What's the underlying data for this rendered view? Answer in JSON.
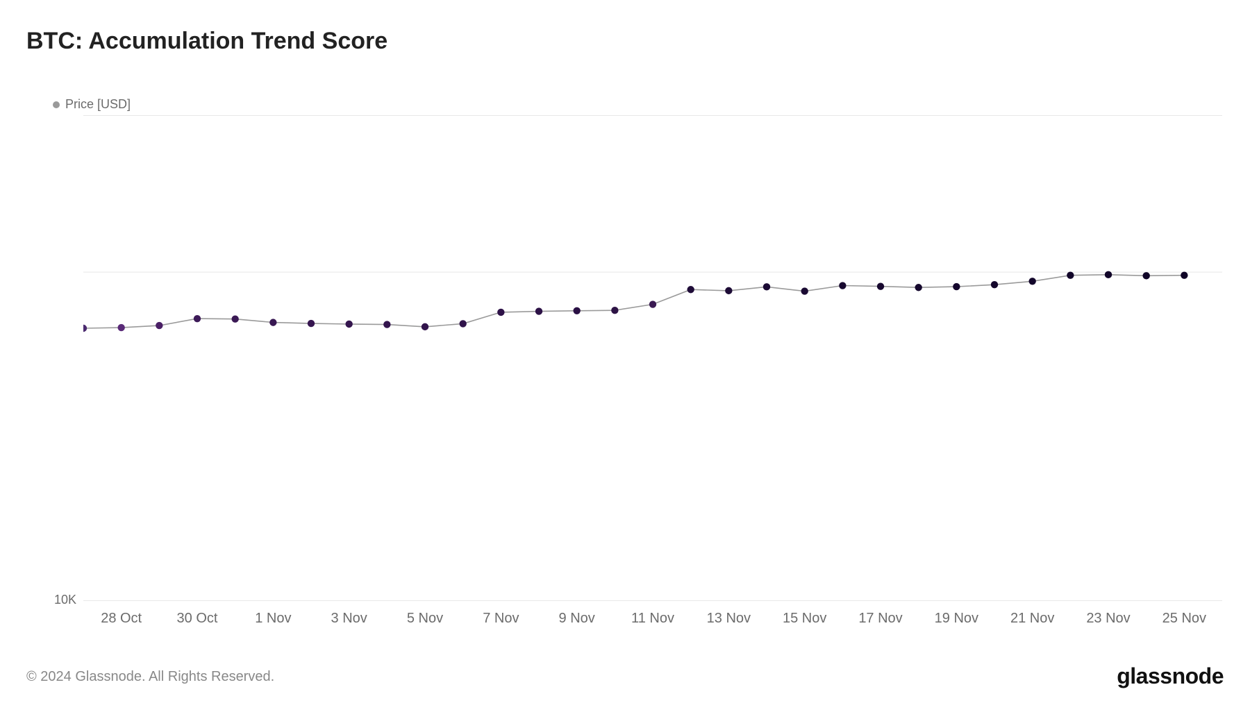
{
  "title": "BTC: Accumulation Trend Score",
  "legend": {
    "label": "Price [USD]",
    "dot_color": "#9a9a9a"
  },
  "footer": {
    "copyright": "© 2024 Glassnode. All Rights Reserved.",
    "brand": "glassnode"
  },
  "chart": {
    "type": "line-scatter",
    "background_color": "#ffffff",
    "grid_color": "#e8e8e8",
    "axis_color": "#d0d0d0",
    "line_color": "#9a9a9a",
    "line_width": 1.6,
    "marker_radius": 5.2,
    "y_axis": {
      "min_label": "10K",
      "min_value": 10000,
      "max_value": 300000,
      "gridline_value": 100000
    },
    "x_ticks": [
      "28 Oct",
      "30 Oct",
      "1 Nov",
      "3 Nov",
      "5 Nov",
      "7 Nov",
      "9 Nov",
      "11 Nov",
      "13 Nov",
      "15 Nov",
      "17 Nov",
      "19 Nov",
      "21 Nov",
      "23 Nov",
      "25 Nov"
    ],
    "x_tick_indices": [
      1,
      3,
      5,
      7,
      9,
      11,
      13,
      15,
      17,
      19,
      21,
      23,
      25,
      27,
      29
    ],
    "x_index_range": [
      0,
      30
    ],
    "points": [
      {
        "i": 0,
        "v": 67500,
        "c": "#4b2a6f"
      },
      {
        "i": 1,
        "v": 67800,
        "c": "#5a2a78"
      },
      {
        "i": 2,
        "v": 68800,
        "c": "#4a1f66"
      },
      {
        "i": 3,
        "v": 72200,
        "c": "#3d1a58"
      },
      {
        "i": 4,
        "v": 72000,
        "c": "#3a1854"
      },
      {
        "i": 5,
        "v": 70300,
        "c": "#381752"
      },
      {
        "i": 6,
        "v": 69800,
        "c": "#361650"
      },
      {
        "i": 7,
        "v": 69500,
        "c": "#34154e"
      },
      {
        "i": 8,
        "v": 69300,
        "c": "#33144d"
      },
      {
        "i": 9,
        "v": 68200,
        "c": "#32144c"
      },
      {
        "i": 10,
        "v": 69700,
        "c": "#30134a"
      },
      {
        "i": 11,
        "v": 75500,
        "c": "#2e1248"
      },
      {
        "i": 12,
        "v": 76000,
        "c": "#2c1146"
      },
      {
        "i": 13,
        "v": 76300,
        "c": "#2a1044"
      },
      {
        "i": 14,
        "v": 76500,
        "c": "#2d1345"
      },
      {
        "i": 15,
        "v": 79800,
        "c": "#3a1a52"
      },
      {
        "i": 16,
        "v": 88500,
        "c": "#1f0c38"
      },
      {
        "i": 17,
        "v": 87800,
        "c": "#1d0b36"
      },
      {
        "i": 18,
        "v": 90200,
        "c": "#1b0a34"
      },
      {
        "i": 19,
        "v": 87500,
        "c": "#1a0a32"
      },
      {
        "i": 20,
        "v": 91000,
        "c": "#180930"
      },
      {
        "i": 21,
        "v": 90500,
        "c": "#17082f"
      },
      {
        "i": 22,
        "v": 89800,
        "c": "#16082e"
      },
      {
        "i": 23,
        "v": 90300,
        "c": "#15072d"
      },
      {
        "i": 24,
        "v": 91600,
        "c": "#14072c"
      },
      {
        "i": 25,
        "v": 93800,
        "c": "#13062b"
      },
      {
        "i": 26,
        "v": 97800,
        "c": "#12062a"
      },
      {
        "i": 27,
        "v": 98200,
        "c": "#110529"
      },
      {
        "i": 28,
        "v": 97500,
        "c": "#100528"
      },
      {
        "i": 29,
        "v": 97800,
        "c": "#0f0427"
      }
    ]
  }
}
